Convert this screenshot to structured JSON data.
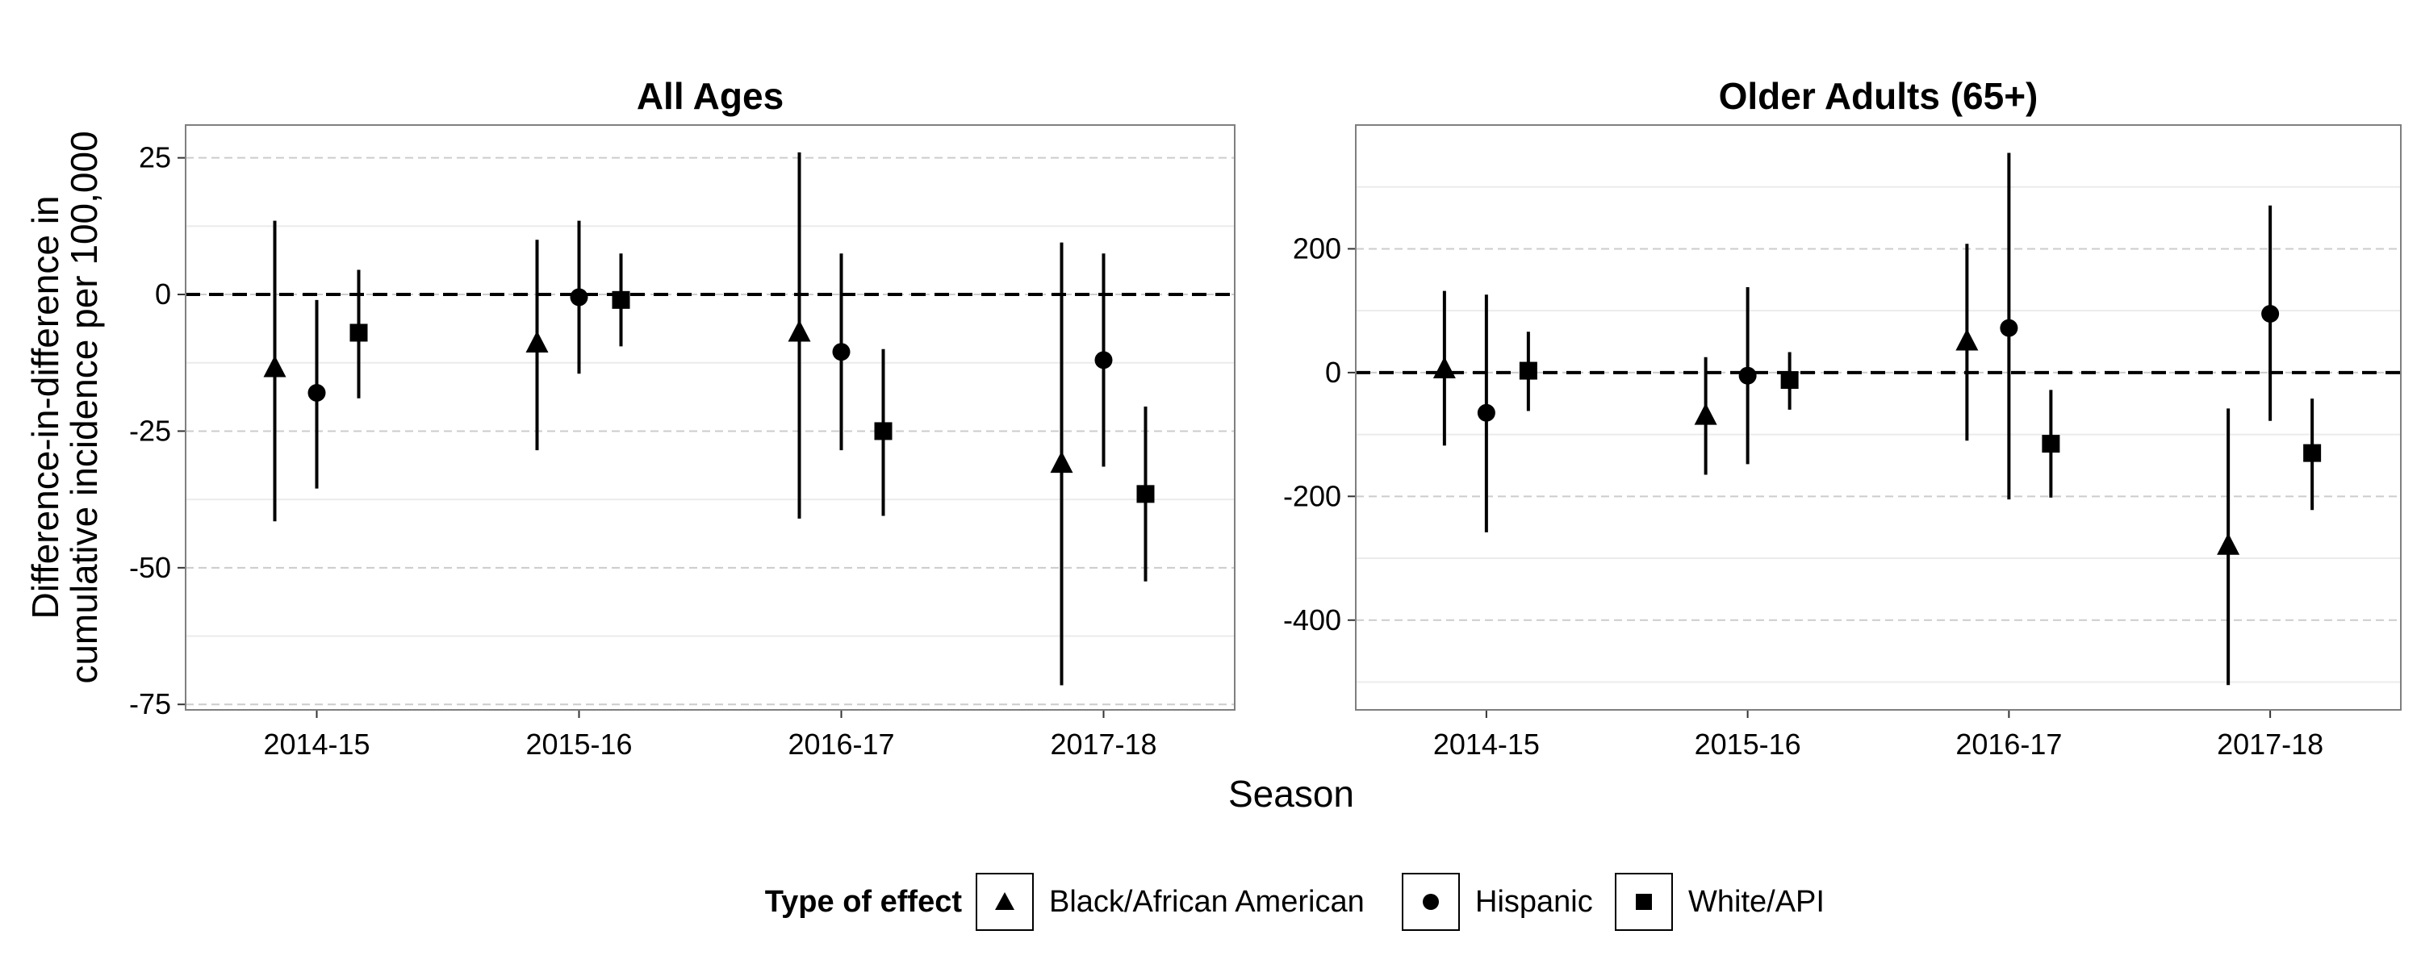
{
  "chart_data": [
    {
      "type": "errorbar",
      "title": "All Ages",
      "categories": [
        "2014-15",
        "2015-16",
        "2016-17",
        "2017-18"
      ],
      "ylim": [
        -76,
        31
      ],
      "yticks": [
        25,
        0,
        -25,
        -50,
        -75
      ],
      "ytick_labels": [
        "25",
        "0",
        "-25",
        "-50",
        "-75"
      ],
      "reference_line": 0,
      "series": [
        {
          "name": "Black/African American",
          "shape": "triangle",
          "values": [
            -13.5,
            -9,
            -7,
            -31
          ],
          "lower": [
            -41.5,
            -28.5,
            -41,
            -71.5
          ],
          "upper": [
            13.5,
            10,
            26,
            9.5
          ]
        },
        {
          "name": "Hispanic",
          "shape": "circle",
          "values": [
            -18,
            -0.5,
            -10.5,
            -12
          ],
          "lower": [
            -35.5,
            -14.5,
            -28.5,
            -31.5
          ],
          "upper": [
            -1,
            13.5,
            7.5,
            7.5
          ]
        },
        {
          "name": "White/API",
          "shape": "square",
          "values": [
            -7,
            -1,
            -25,
            -36.5
          ],
          "lower": [
            -19,
            -9.5,
            -40.5,
            -52.5
          ],
          "upper": [
            4.5,
            7.5,
            -10,
            -20.5
          ]
        }
      ]
    },
    {
      "type": "errorbar",
      "title": "Older Adults (65+)",
      "categories": [
        "2014-15",
        "2015-16",
        "2016-17",
        "2017-18"
      ],
      "ylim": [
        -545,
        400
      ],
      "yticks": [
        200,
        0,
        -200,
        -400
      ],
      "ytick_labels": [
        "200",
        "0",
        "-200",
        "-400"
      ],
      "reference_line": 0,
      "series": [
        {
          "name": "Black/African American",
          "shape": "triangle",
          "values": [
            5,
            -70,
            50,
            -280
          ],
          "lower": [
            -118,
            -165,
            -110,
            -505
          ],
          "upper": [
            132,
            25,
            208,
            -58
          ]
        },
        {
          "name": "Hispanic",
          "shape": "circle",
          "values": [
            -65,
            -5,
            72,
            95
          ],
          "lower": [
            -258,
            -148,
            -205,
            -78
          ],
          "upper": [
            126,
            138,
            355,
            270
          ]
        },
        {
          "name": "White/API",
          "shape": "square",
          "values": [
            3,
            -12,
            -115,
            -130
          ],
          "lower": [
            -62,
            -60,
            -202,
            -222
          ],
          "upper": [
            66,
            33,
            -28,
            -42
          ]
        }
      ]
    }
  ],
  "axes": {
    "xlabel": "Season",
    "ylabel_line1": "Difference-in-difference in",
    "ylabel_line2": "cumulative incidence per 100,000"
  },
  "legend": {
    "title": "Type of effect",
    "items": [
      {
        "label": "Black/African American",
        "shape": "triangle"
      },
      {
        "label": "Hispanic",
        "shape": "circle"
      },
      {
        "label": "White/API",
        "shape": "square"
      }
    ]
  },
  "colors": {
    "grid": "#cccccc",
    "minor_grid": "#ebebeb",
    "panel_border": "#7f7f7f",
    "marks": "#000000"
  }
}
